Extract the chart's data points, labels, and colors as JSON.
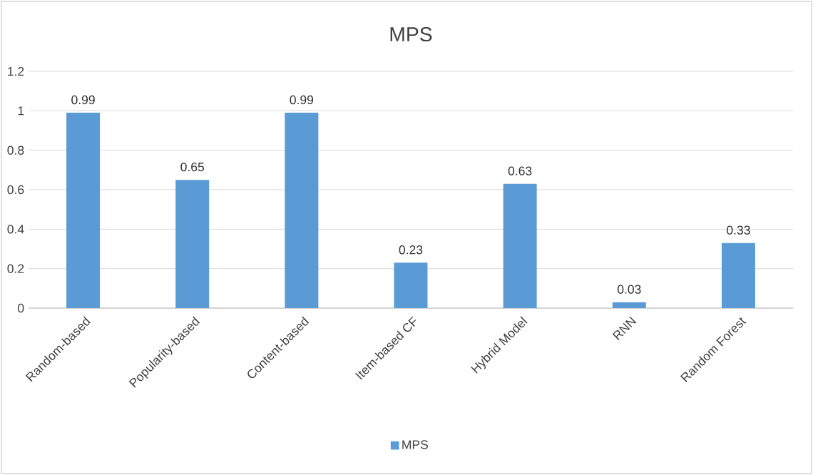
{
  "chart_data": {
    "type": "bar",
    "title": "MPS",
    "categories": [
      "Random-based",
      "Popularity-based",
      "Content-based",
      "Item-based CF",
      "Hybrid Model",
      "RNN",
      "Random Forest"
    ],
    "series": [
      {
        "name": "MPS",
        "color": "#5b9bd5",
        "values": [
          0.99,
          0.65,
          0.99,
          0.23,
          0.63,
          0.03,
          0.33
        ]
      }
    ],
    "ylim": [
      0,
      1.2
    ],
    "yticks": [
      0,
      0.2,
      0.4,
      0.6,
      0.8,
      1,
      1.2
    ],
    "grid": "y",
    "data_labels": true,
    "legend": "bottom"
  }
}
